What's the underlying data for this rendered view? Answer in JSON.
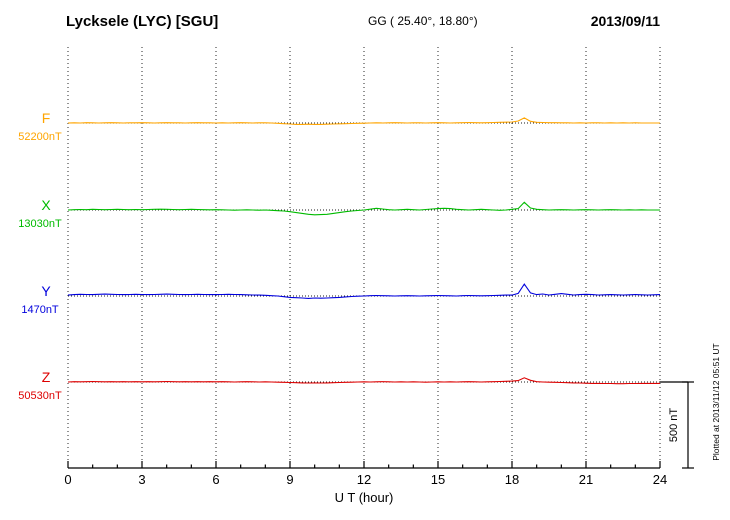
{
  "header": {
    "station_title": "Lycksele (LYC)  [SGU]",
    "gg_coords": "GG ( 25.40°,  18.80°)",
    "date": "2013/09/11"
  },
  "side": {
    "plotted_at": "Plotted at 2013/11/12 05:51 UT",
    "scale_label": "500 nT"
  },
  "chart_data": {
    "type": "line",
    "title": "Lycksele (LYC) [SGU] magnetogram 2013/09/11",
    "xlabel": "U T (hour)",
    "x_range": [
      0,
      24
    ],
    "x_ticks": [
      0,
      3,
      6,
      9,
      12,
      15,
      18,
      21,
      24
    ],
    "x_tick_labels": [
      "0",
      "3",
      "6",
      "9",
      "12",
      "15",
      "18",
      "21",
      "24"
    ],
    "sample_step_hours": 0.25,
    "scale_bar_nT": 500,
    "grid": {
      "vertical_dotted_every_hours": 3,
      "horizontal_dotted_baselines": true
    },
    "series": [
      {
        "name": "F",
        "baseline_label": "52200nT",
        "baseline_nT": 52200,
        "color": "#ffa500",
        "deviation_nT": [
          0,
          1,
          0,
          2,
          1,
          0,
          1,
          2,
          1,
          0,
          1,
          1,
          2,
          1,
          0,
          1,
          2,
          1,
          1,
          0,
          1,
          2,
          1,
          1,
          0,
          1,
          0,
          1,
          2,
          1,
          0,
          1,
          1,
          0,
          -2,
          -4,
          -6,
          -8,
          -8,
          -7,
          -8,
          -8,
          -7,
          -6,
          -5,
          -4,
          -3,
          -2,
          -1,
          0,
          1,
          0,
          1,
          2,
          1,
          0,
          1,
          1,
          0,
          1,
          2,
          1,
          0,
          1,
          2,
          3,
          2,
          1,
          2,
          3,
          4,
          5,
          6,
          12,
          30,
          10,
          4,
          3,
          2,
          2,
          1,
          1,
          0,
          1,
          0,
          1,
          1,
          0,
          1,
          0,
          1,
          0,
          1,
          0,
          0,
          0,
          0
        ]
      },
      {
        "name": "X",
        "baseline_label": "13030nT",
        "baseline_nT": 13030,
        "color": "#00bb00",
        "deviation_nT": [
          0,
          2,
          3,
          2,
          4,
          3,
          2,
          3,
          4,
          3,
          2,
          3,
          2,
          3,
          4,
          5,
          4,
          3,
          2,
          3,
          4,
          3,
          2,
          1,
          2,
          1,
          0,
          -1,
          0,
          1,
          0,
          -1,
          0,
          -2,
          -4,
          -6,
          -10,
          -15,
          -20,
          -25,
          -28,
          -27,
          -25,
          -20,
          -15,
          -10,
          -6,
          -3,
          0,
          5,
          10,
          6,
          2,
          0,
          2,
          4,
          2,
          0,
          3,
          6,
          8,
          10,
          8,
          4,
          2,
          0,
          2,
          4,
          2,
          0,
          -2,
          0,
          4,
          8,
          45,
          12,
          4,
          2,
          0,
          1,
          2,
          1,
          0,
          1,
          2,
          1,
          0,
          1,
          2,
          1,
          0,
          1,
          0,
          1,
          0,
          0,
          0
        ]
      },
      {
        "name": "Y",
        "baseline_label": "1470nT",
        "baseline_nT": 1470,
        "color": "#0000dd",
        "deviation_nT": [
          5,
          8,
          10,
          9,
          8,
          10,
          11,
          10,
          9,
          8,
          9,
          10,
          9,
          8,
          9,
          10,
          11,
          10,
          9,
          8,
          9,
          10,
          9,
          8,
          8,
          9,
          10,
          9,
          8,
          7,
          6,
          5,
          4,
          2,
          0,
          -4,
          -8,
          -10,
          -12,
          -14,
          -12,
          -13,
          -12,
          -10,
          -8,
          -5,
          -3,
          -1,
          0,
          2,
          3,
          2,
          1,
          0,
          1,
          2,
          1,
          0,
          1,
          2,
          3,
          2,
          1,
          0,
          2,
          3,
          2,
          1,
          2,
          3,
          4,
          5,
          5,
          15,
          70,
          18,
          8,
          12,
          6,
          10,
          14,
          10,
          6,
          8,
          10,
          8,
          6,
          7,
          8,
          7,
          6,
          7,
          8,
          7,
          6,
          7,
          8
        ]
      },
      {
        "name": "Z",
        "baseline_label": "50530nT",
        "baseline_nT": 50530,
        "color": "#dd0000",
        "deviation_nT": [
          0,
          2,
          1,
          2,
          3,
          2,
          1,
          2,
          1,
          2,
          1,
          2,
          1,
          2,
          1,
          2,
          3,
          2,
          1,
          2,
          1,
          2,
          1,
          2,
          1,
          2,
          1,
          0,
          1,
          2,
          1,
          0,
          1,
          0,
          -1,
          -2,
          -3,
          -4,
          -5,
          -6,
          -5,
          -6,
          -5,
          -4,
          -3,
          -2,
          -1,
          0,
          1,
          0,
          1,
          2,
          1,
          0,
          1,
          0,
          1,
          0,
          -1,
          0,
          1,
          0,
          1,
          0,
          1,
          2,
          1,
          0,
          1,
          2,
          3,
          4,
          5,
          8,
          25,
          10,
          2,
          0,
          -1,
          -2,
          -3,
          -4,
          -5,
          -6,
          -7,
          -8,
          -8,
          -9,
          -9,
          -10,
          -10,
          -9,
          -9,
          -8,
          -8,
          -8,
          -8
        ]
      }
    ]
  }
}
